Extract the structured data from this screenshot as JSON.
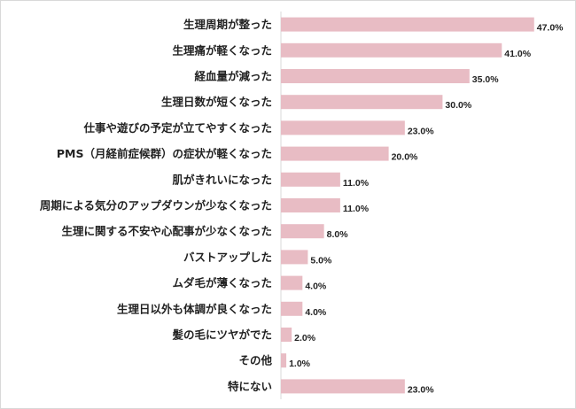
{
  "chart_data": {
    "type": "bar",
    "orientation": "horizontal",
    "categories": [
      "生理周期が整った",
      "生理痛が軽くなった",
      "経血量が減った",
      "生理日数が短くなった",
      "仕事や遊びの予定が立てやすくなった",
      "PMS（月経前症候群）の症状が軽くなった",
      "肌がきれいになった",
      "周期による気分のアップダウンが少なくなった",
      "生理に関する不安や心配事が少なくなった",
      "バストアップした",
      "ムダ毛が薄くなった",
      "生理日以外も体調が良くなった",
      "髪の毛にツヤがでた",
      "その他",
      "特にない"
    ],
    "values": [
      47.0,
      41.0,
      35.0,
      30.0,
      23.0,
      20.0,
      11.0,
      11.0,
      8.0,
      5.0,
      4.0,
      4.0,
      2.0,
      1.0,
      23.0
    ],
    "value_labels": [
      "47.0%",
      "41.0%",
      "35.0%",
      "30.0%",
      "23.0%",
      "20.0%",
      "11.0%",
      "11.0%",
      "8.0%",
      "5.0%",
      "4.0%",
      "4.0%",
      "2.0%",
      "1.0%",
      "23.0%"
    ],
    "xlim": [
      0,
      50
    ],
    "grid": false,
    "legend": "none",
    "bar_color": "#e8bcc4",
    "axis_color": "#d9d9d9"
  }
}
